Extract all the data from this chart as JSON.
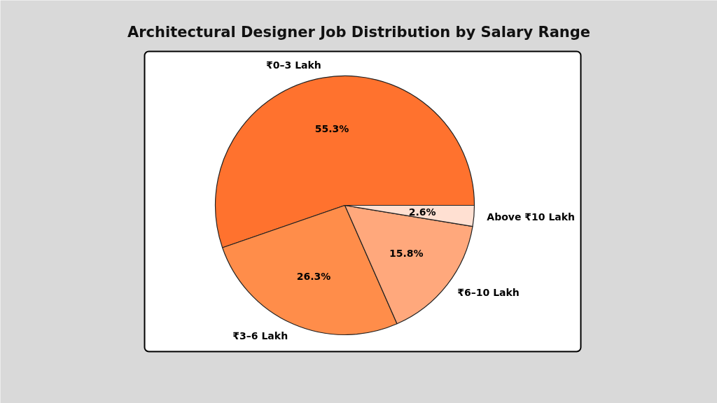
{
  "chart_data": {
    "type": "pie",
    "title": "Architectural Designer Job Distribution by Salary Range",
    "categories": [
      "₹0–3 Lakh",
      "₹3–6 Lakh",
      "₹6–10 Lakh",
      "Above ₹10 Lakh"
    ],
    "values": [
      55.3,
      26.3,
      15.8,
      2.6
    ],
    "value_labels": [
      "55.3%",
      "26.3%",
      "15.8%",
      "2.6%"
    ],
    "colors": [
      "#ff722e",
      "#ff8d4a",
      "#ffa87c",
      "#ffe0d2"
    ]
  }
}
